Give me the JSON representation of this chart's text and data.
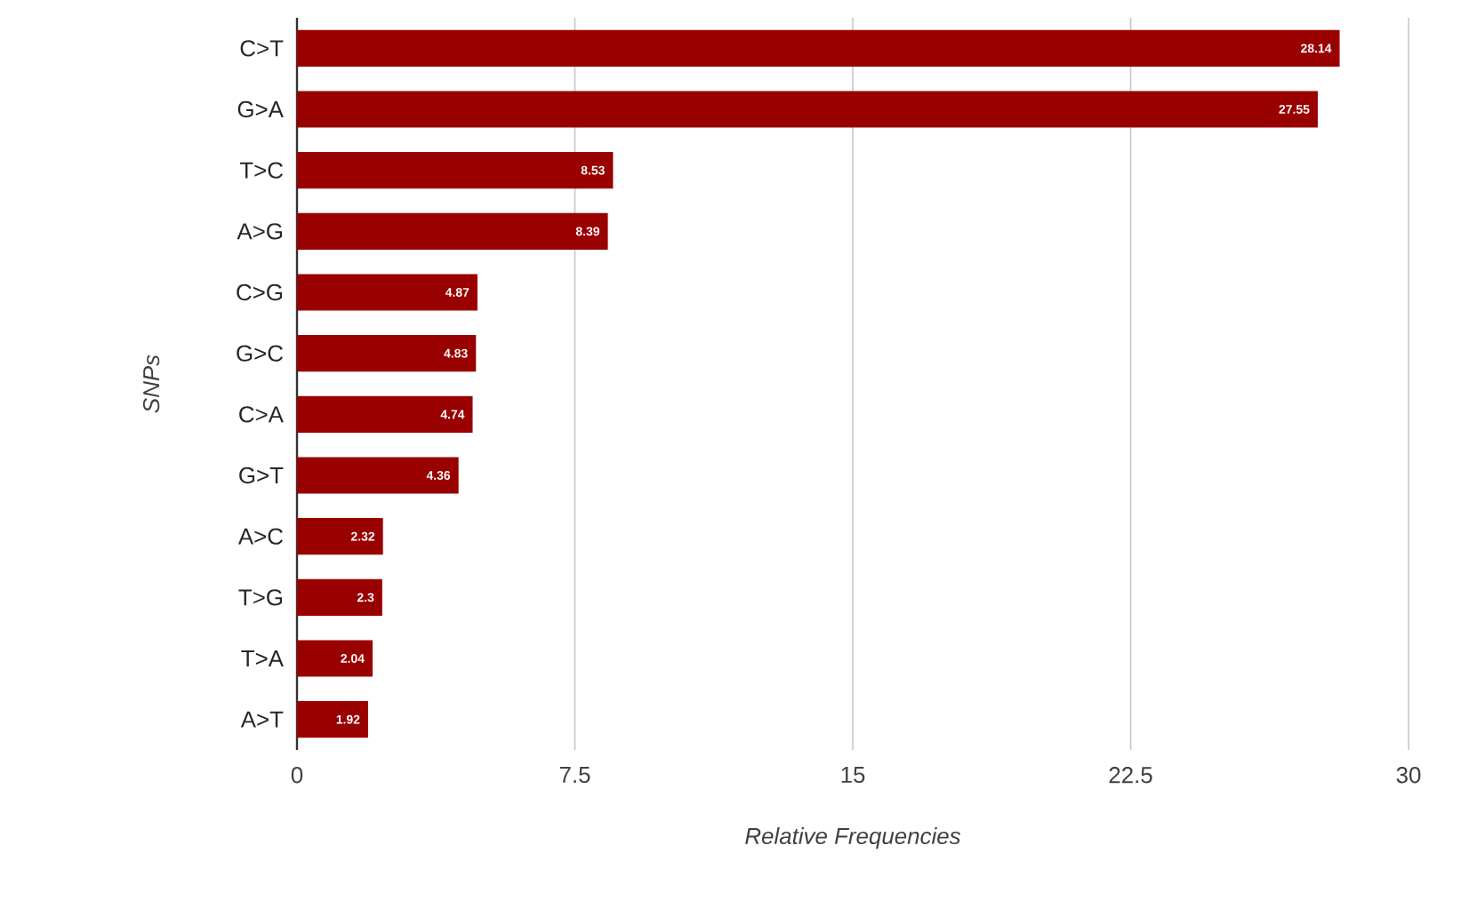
{
  "chart_data": {
    "type": "bar",
    "orientation": "horizontal",
    "xlabel": "Relative Frequencies",
    "ylabel": "SNPs",
    "categories": [
      "C>T",
      "G>A",
      "T>C",
      "A>G",
      "C>G",
      "G>C",
      "C>A",
      "G>T",
      "A>C",
      "T>G",
      "T>A",
      "A>T"
    ],
    "values": [
      28.14,
      27.55,
      8.53,
      8.39,
      4.87,
      4.83,
      4.74,
      4.36,
      2.32,
      2.3,
      2.04,
      1.92
    ],
    "color": "#990000",
    "xlim": [
      0,
      30
    ],
    "xticks": [
      0,
      7.5,
      15,
      22.5,
      30
    ],
    "grid": "x",
    "data_labels": true
  }
}
